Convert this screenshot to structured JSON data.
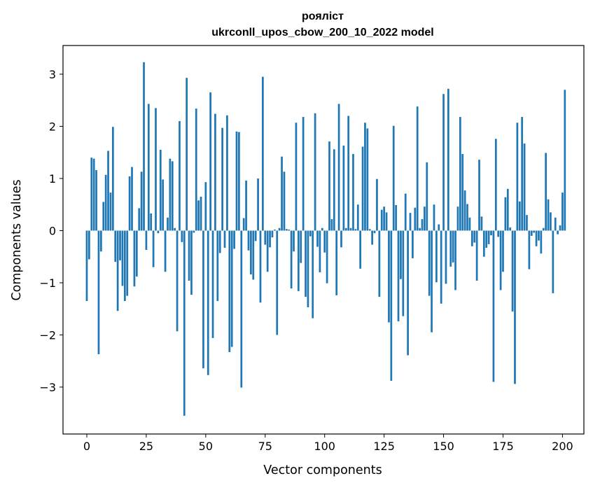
{
  "chart_data": {
    "type": "bar",
    "title": "рояліст",
    "subtitle": "ukrconll_upos_cbow_200_10_2022 model",
    "xlabel": "Vector components",
    "ylabel": "Components values",
    "xlim": [
      -10,
      209
    ],
    "ylim": [
      -3.9,
      3.55
    ],
    "xticks": [
      0,
      25,
      50,
      75,
      100,
      125,
      150,
      175,
      200
    ],
    "yticks": [
      -3,
      -2,
      -1,
      0,
      1,
      2,
      3
    ],
    "xtick_labels": [
      "0",
      "25",
      "50",
      "75",
      "100",
      "125",
      "150",
      "175",
      "200"
    ],
    "ytick_labels": [
      "−3",
      "−2",
      "−1",
      "0",
      "1",
      "2",
      "3"
    ],
    "grid": false,
    "bar_color": "#1f77b4",
    "values": [
      -1.35,
      -0.55,
      1.4,
      1.38,
      1.16,
      -2.37,
      -0.4,
      0.55,
      1.07,
      1.53,
      0.73,
      1.99,
      -0.6,
      -1.54,
      -0.57,
      -1.06,
      -1.35,
      -1.25,
      1.04,
      1.22,
      -1.07,
      -0.88,
      0.43,
      1.13,
      3.23,
      -0.37,
      2.43,
      0.33,
      -0.7,
      2.35,
      -0.05,
      1.55,
      0.98,
      -0.79,
      0.25,
      1.38,
      1.33,
      0.05,
      -1.93,
      2.1,
      -0.22,
      -3.55,
      2.93,
      -0.96,
      -1.23,
      -0.04,
      2.34,
      0.58,
      0.65,
      -2.64,
      0.93,
      -2.77,
      2.65,
      -2.06,
      2.24,
      -1.35,
      -0.43,
      1.97,
      -0.33,
      2.21,
      -2.33,
      -2.23,
      -0.35,
      1.9,
      1.89,
      -3.01,
      0.24,
      0.96,
      -0.38,
      -0.84,
      -0.94,
      -0.2,
      1.0,
      -1.38,
      2.95,
      -0.27,
      -0.79,
      -0.32,
      -0.13,
      0.02,
      -2.0,
      0.05,
      1.42,
      1.13,
      0.03,
      0.02,
      -1.11,
      -0.4,
      2.07,
      -1.16,
      -0.62,
      2.18,
      -1.27,
      -1.47,
      -0.11,
      -1.68,
      2.25,
      -0.31,
      -0.8,
      0.05,
      -0.42,
      -1.01,
      1.71,
      0.22,
      1.56,
      -1.24,
      2.43,
      -0.32,
      1.63,
      0.05,
      2.2,
      0.05,
      1.47,
      0.03,
      0.5,
      -0.73,
      1.61,
      2.07,
      1.96,
      0.03,
      -0.27,
      -0.05,
      0.99,
      -1.27,
      0.4,
      0.46,
      0.35,
      -1.76,
      -2.88,
      2.01,
      0.49,
      -1.74,
      -0.93,
      -1.64,
      0.71,
      -2.39,
      0.34,
      -0.53,
      0.44,
      2.38,
      0.05,
      0.22,
      0.46,
      1.31,
      -1.25,
      -1.95,
      0.5,
      -0.99,
      0.12,
      -1.4,
      2.62,
      -1.02,
      2.72,
      -0.69,
      -0.61,
      -1.14,
      0.46,
      2.18,
      1.47,
      0.77,
      0.51,
      0.25,
      -0.3,
      -0.23,
      -0.96,
      1.36,
      0.27,
      -0.5,
      -0.33,
      -0.26,
      -0.09,
      -2.9,
      1.76,
      -0.12,
      -1.14,
      -0.79,
      0.64,
      0.8,
      0.06,
      -1.55,
      -2.94,
      2.07,
      0.56,
      2.18,
      1.67,
      0.3,
      -0.74,
      -0.1,
      -0.04,
      -0.3,
      -0.19,
      -0.44,
      0.05,
      1.49,
      0.6,
      0.35,
      -1.2,
      0.25,
      -0.07,
      0.1,
      0.73,
      2.7
    ]
  }
}
